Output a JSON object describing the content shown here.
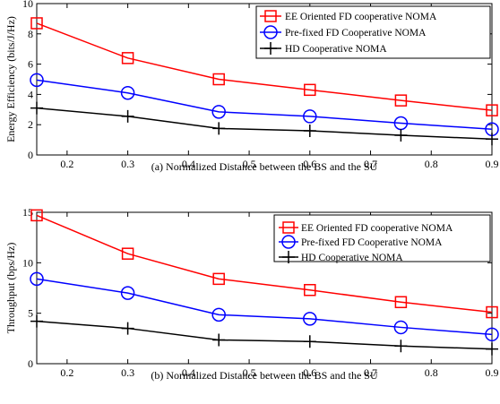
{
  "chart_data": [
    {
      "type": "line",
      "caption": "(a) Normalized Distance between the BS and the SU",
      "ylabel": "Energy Efficiency (bits/J/Hz)",
      "xlim": [
        0.15,
        0.9
      ],
      "ylim": [
        0,
        10
      ],
      "xticks": [
        "0.2",
        "0.3",
        "0.4",
        "0.5",
        "0.6",
        "0.7",
        "0.8",
        "0.9"
      ],
      "yticks": [
        "0",
        "2",
        "4",
        "6",
        "8",
        "10"
      ],
      "x": [
        0.15,
        0.3,
        0.45,
        0.6,
        0.75,
        0.9
      ],
      "legend_position": "top-right",
      "series": [
        {
          "name": "EE Oriented FD cooperative NOMA",
          "color": "#ff0000",
          "marker": "square",
          "values": [
            8.7,
            6.4,
            5.0,
            4.3,
            3.6,
            2.95
          ]
        },
        {
          "name": "Pre-fixed FD Cooperative NOMA",
          "color": "#0000ff",
          "marker": "circle",
          "values": [
            4.95,
            4.1,
            2.85,
            2.55,
            2.1,
            1.7
          ]
        },
        {
          "name": "HD Cooperative NOMA",
          "color": "#000000",
          "marker": "plus",
          "values": [
            3.1,
            2.55,
            1.75,
            1.6,
            1.3,
            1.05
          ]
        }
      ]
    },
    {
      "type": "line",
      "caption": "(b) Normalized Distance between the BS and the SU",
      "ylabel": "Throughput (bps/Hz)",
      "xlim": [
        0.15,
        0.9
      ],
      "ylim": [
        0,
        15
      ],
      "xticks": [
        "0.2",
        "0.3",
        "0.4",
        "0.5",
        "0.6",
        "0.7",
        "0.8",
        "0.9"
      ],
      "yticks": [
        "0",
        "5",
        "10",
        "15"
      ],
      "x": [
        0.15,
        0.3,
        0.45,
        0.6,
        0.75,
        0.9
      ],
      "legend_position": "top-right",
      "series": [
        {
          "name": "EE Oriented FD cooperative NOMA",
          "color": "#ff0000",
          "marker": "square",
          "values": [
            14.7,
            10.9,
            8.4,
            7.3,
            6.1,
            5.1
          ]
        },
        {
          "name": "Pre-fixed FD Cooperative NOMA",
          "color": "#0000ff",
          "marker": "circle",
          "values": [
            8.4,
            7.0,
            4.85,
            4.45,
            3.6,
            2.9
          ]
        },
        {
          "name": "HD Cooperative NOMA",
          "color": "#000000",
          "marker": "plus",
          "values": [
            4.2,
            3.5,
            2.35,
            2.2,
            1.75,
            1.45
          ]
        }
      ]
    }
  ]
}
